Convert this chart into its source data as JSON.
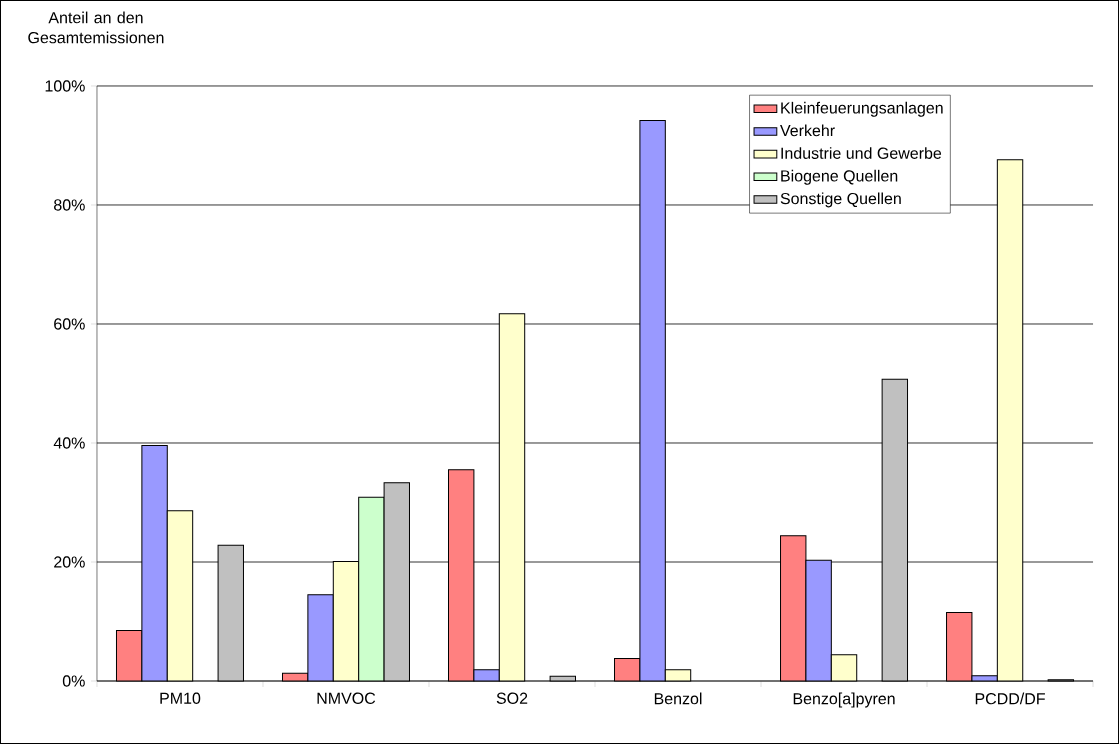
{
  "chart_data": {
    "type": "bar",
    "ylabel": "Anteil an den Gesamtemissionen",
    "categories": [
      "PM10",
      "NMVOC",
      "SO2",
      "Benzol",
      "Benzo[a]pyren",
      "PCDD/DF"
    ],
    "series": [
      {
        "name": "Kleinfeuerungsanlagen",
        "color": "#ff8080",
        "values": [
          8.5,
          1.3,
          35.5,
          3.8,
          24.4,
          11.5
        ]
      },
      {
        "name": "Verkehr",
        "color": "#9999ff",
        "values": [
          39.6,
          14.5,
          1.9,
          94.2,
          20.3,
          0.9
        ]
      },
      {
        "name": "Industrie und Gewerbe",
        "color": "#ffffcc",
        "values": [
          28.6,
          20.1,
          61.7,
          1.9,
          4.4,
          87.6
        ]
      },
      {
        "name": "Biogene Quellen",
        "color": "#ccffcc",
        "values": [
          null,
          30.9,
          null,
          null,
          null,
          null
        ]
      },
      {
        "name": "Sonstige Quellen",
        "color": "#c0c0c0",
        "values": [
          22.8,
          33.3,
          0.8,
          null,
          50.7,
          0.2
        ]
      }
    ],
    "ylim": [
      0,
      100
    ],
    "yticks": [
      {
        "value": 0,
        "label": "0%"
      },
      {
        "value": 20,
        "label": "20%"
      },
      {
        "value": 40,
        "label": "40%"
      },
      {
        "value": 60,
        "label": "60%"
      },
      {
        "value": 80,
        "label": "80%"
      },
      {
        "value": 100,
        "label": "100%"
      }
    ],
    "grid": "y",
    "legend": "top right"
  }
}
